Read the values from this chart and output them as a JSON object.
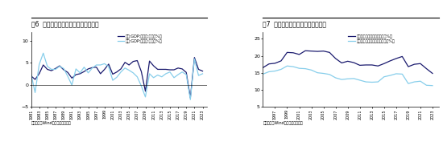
{
  "fig6_title_num": "图6",
  "fig6_title_text": "  美国经济和全球经济有很强相关性",
  "fig7_title_num": "图7",
  "fig7_title_text": "  中美之间贸易依赖度依然比较高",
  "fig6_legend": [
    "全球:GDP:不变价:同比（%）",
    "美国:GDP:不变价:同比（%）"
  ],
  "fig7_legend": [
    "中国对美出口占总出口比重（%）",
    "中美贸易额占中国贸易额比重（%）"
  ],
  "source_text": "资料来源：Wind，海通证券研究所",
  "fig6_color_global": "#1a1a6e",
  "fig6_color_usa": "#87CEEB",
  "fig7_color_china_us": "#1a1a6e",
  "fig7_color_trade": "#87CEEB",
  "fig6_years": [
    1981,
    1982,
    1983,
    1984,
    1985,
    1986,
    1987,
    1988,
    1989,
    1990,
    1991,
    1992,
    1993,
    1994,
    1995,
    1996,
    1997,
    1998,
    1999,
    2000,
    2001,
    2002,
    2003,
    2004,
    2005,
    2006,
    2007,
    2008,
    2009,
    2010,
    2011,
    2012,
    2013,
    2014,
    2015,
    2016,
    2017,
    2018,
    2019,
    2020,
    2021,
    2022,
    2023
  ],
  "fig6_global_gdp": [
    2.0,
    1.2,
    2.5,
    4.5,
    3.5,
    3.2,
    3.7,
    4.3,
    3.4,
    2.8,
    1.5,
    2.3,
    2.5,
    3.0,
    3.6,
    3.9,
    4.0,
    2.5,
    3.5,
    4.7,
    2.4,
    2.9,
    3.6,
    5.1,
    4.5,
    5.3,
    5.5,
    3.0,
    -1.5,
    5.4,
    4.3,
    3.5,
    3.5,
    3.5,
    3.4,
    3.4,
    3.8,
    3.6,
    2.8,
    -3.0,
    6.2,
    3.5,
    3.1
  ],
  "fig6_usa_gdp": [
    2.5,
    -1.8,
    4.6,
    7.2,
    4.2,
    3.5,
    3.5,
    4.2,
    3.7,
    1.9,
    -0.1,
    3.6,
    2.7,
    4.0,
    2.7,
    3.8,
    4.5,
    4.5,
    4.8,
    4.1,
    1.0,
    1.7,
    2.9,
    3.8,
    3.3,
    2.7,
    1.8,
    -0.3,
    -2.8,
    2.5,
    1.6,
    2.2,
    1.8,
    2.5,
    2.9,
    1.6,
    2.3,
    2.9,
    2.3,
    -3.4,
    5.9,
    2.1,
    2.5
  ],
  "fig7_years": [
    1995,
    1996,
    1997,
    1998,
    1999,
    2000,
    2001,
    2002,
    2003,
    2004,
    2005,
    2006,
    2007,
    2008,
    2009,
    2010,
    2011,
    2012,
    2013,
    2014,
    2015,
    2016,
    2017,
    2018,
    2019,
    2020,
    2021,
    2022,
    2023
  ],
  "fig7_china_us_export": [
    16.5,
    17.6,
    17.8,
    18.5,
    21.0,
    20.9,
    20.4,
    21.5,
    21.4,
    21.3,
    21.4,
    21.0,
    19.2,
    17.9,
    18.4,
    18.0,
    17.2,
    17.3,
    17.3,
    17.0,
    17.7,
    18.5,
    19.2,
    19.8,
    16.8,
    17.5,
    17.7,
    16.2,
    14.8
  ],
  "fig7_trade_share": [
    14.6,
    15.3,
    15.5,
    16.0,
    17.0,
    16.8,
    16.3,
    16.2,
    15.8,
    15.0,
    14.8,
    14.5,
    13.5,
    13.0,
    13.2,
    13.3,
    12.8,
    12.3,
    12.2,
    12.3,
    13.8,
    14.2,
    14.7,
    14.6,
    11.8,
    12.3,
    12.5,
    11.3,
    11.2
  ],
  "fig6_tick_years": [
    1981,
    1983,
    1985,
    1987,
    1989,
    1991,
    1993,
    1995,
    1997,
    1999,
    2001,
    2003,
    2005,
    2007,
    2009,
    2011,
    2013,
    2015,
    2017,
    2019,
    2021,
    2023
  ],
  "fig7_tick_years": [
    1997,
    1999,
    2001,
    2003,
    2005,
    2007,
    2009,
    2011,
    2013,
    2015,
    2017,
    2019,
    2021,
    2023
  ]
}
